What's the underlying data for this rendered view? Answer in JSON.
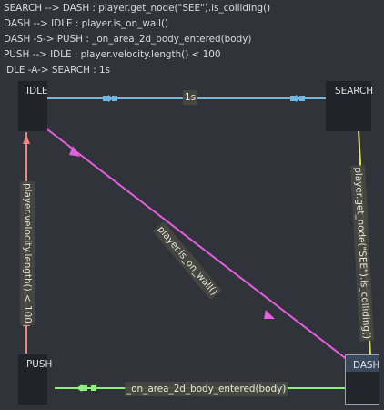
{
  "rules": [
    "SEARCH --> DASH : player.get_node(\"SEE\").is_colliding()",
    "DASH --> IDLE : player.is_on_wall()",
    "DASH -S-> PUSH : _on_area_2d_body_entered(body)",
    "PUSH --> IDLE : player.velocity.length() < 100",
    "IDLE -A-> SEARCH : 1s"
  ],
  "states": {
    "idle": "IDLE",
    "search": "SEARCH",
    "push": "PUSH",
    "dash": "DASH"
  },
  "transitions": {
    "idle_to_search": {
      "label": "1s",
      "color": "#6fb9e9"
    },
    "search_to_dash": {
      "label": "player.get_node(\"SEE\").is_colliding()",
      "color": "#e3e85a"
    },
    "dash_to_idle": {
      "label": "player.is_on_wall()",
      "color": "#e55ee0"
    },
    "push_to_idle": {
      "label": "player.velocity.length() < 100",
      "color": "#f08a80"
    },
    "dash_to_push": {
      "label": "_on_area_2d_body_entered(body)",
      "color": "#8ef27a"
    }
  },
  "selected_state": "dash"
}
